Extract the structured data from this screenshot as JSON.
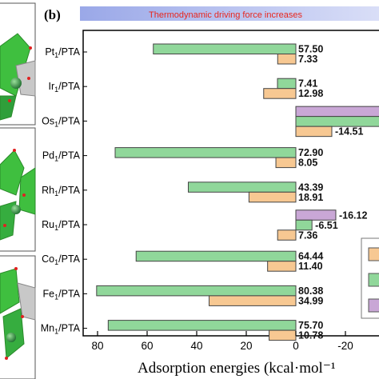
{
  "panel_label": "(b)",
  "banner_text": "Thermodynamic driving force increases",
  "chart_data": {
    "type": "bar",
    "orientation": "horizontal",
    "categories": [
      "Pt",
      "Ir",
      "Os",
      "Pd",
      "Rh",
      "Ru",
      "Co",
      "Fe",
      "Mn"
    ],
    "category_suffix": "/PTA",
    "category_subscript": "1",
    "xlabel": "Adsorption energies (kcal·mol⁻¹",
    "x_axis_direction": "reversed",
    "xlim": [
      85,
      -36
    ],
    "x_ticks": [
      80,
      60,
      40,
      20,
      0,
      -20
    ],
    "x_tick_labels": [
      "80",
      "60",
      "40",
      "20",
      "0",
      "-20"
    ],
    "grid": false,
    "legend": "right, partially cropped, labels not visible",
    "series": [
      {
        "color": "#c9a7d6",
        "values": [
          null,
          null,
          -36,
          null,
          null,
          -16.12,
          null,
          null,
          null
        ],
        "labels": [
          "",
          "",
          "",
          "",
          "",
          "-16.12",
          "",
          "",
          ""
        ]
      },
      {
        "color": "#90d79a",
        "values": [
          57.5,
          7.41,
          -36,
          72.9,
          43.39,
          -6.51,
          64.44,
          80.38,
          75.7
        ],
        "labels": [
          "57.50",
          "7.41",
          "",
          "72.90",
          "43.39",
          "-6.51",
          "64.44",
          "80.38",
          "75.70"
        ]
      },
      {
        "color": "#f7c892",
        "values": [
          7.33,
          12.98,
          -14.51,
          8.05,
          18.91,
          7.36,
          11.4,
          34.99,
          10.78
        ],
        "labels": [
          "7.33",
          "12.98",
          "-14.51",
          "8.05",
          "18.91",
          "7.36",
          "11.40",
          "34.99",
          "10.78"
        ]
      }
    ]
  },
  "colors": {
    "banner_start": "#9aa8e8",
    "banner_end": "#d9def7",
    "banner_text": "#e8261e",
    "structure_green": "#3fbf3f",
    "structure_frame": "#444444"
  }
}
